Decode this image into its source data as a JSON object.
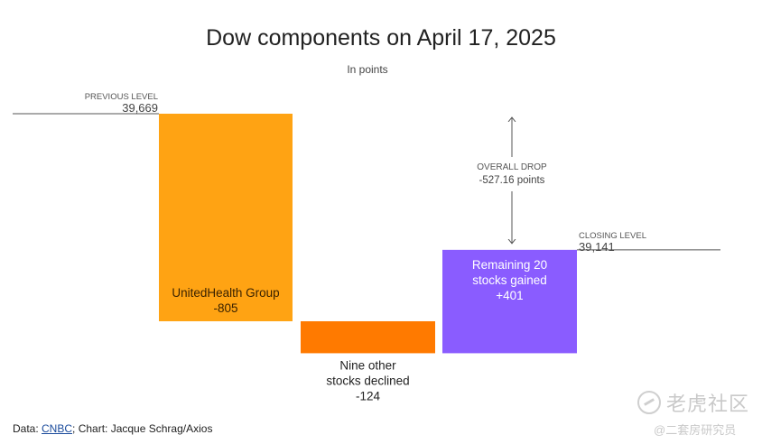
{
  "chart_data": {
    "type": "waterfall",
    "title": "Dow components on April 17, 2025",
    "subtitle": "In points",
    "start": {
      "label": "PREVIOUS LEVEL",
      "value": 39669,
      "display": "39,669"
    },
    "steps": [
      {
        "label_lines": [
          "UnitedHealth Group",
          "-805"
        ],
        "value": -805,
        "color": "#FFA313"
      },
      {
        "label_lines": [
          "Nine other",
          "stocks declined",
          "-124"
        ],
        "value": -124,
        "color": "#FF7A00"
      },
      {
        "label_lines": [
          "Remaining 20",
          "stocks gained",
          "+401"
        ],
        "value": 401,
        "color": "#8A5CFF"
      }
    ],
    "end": {
      "label": "CLOSING LEVEL",
      "value": 39141,
      "display": "39,141"
    },
    "annotation": {
      "lines": [
        "OVERALL DROP",
        "-527.16 points"
      ]
    }
  },
  "footer": {
    "prefix": "Data: ",
    "link": "CNBC",
    "suffix": "; Chart: Jacque Schrag/Axios"
  },
  "watermark": {
    "logo_text": "老虎社区",
    "handle": "@二套房研究员"
  }
}
